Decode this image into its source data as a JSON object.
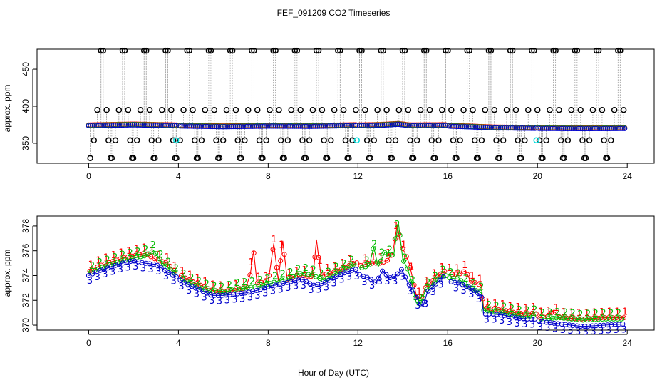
{
  "figure": {
    "title": "FEF_091209  CO2 Timeseries",
    "xlabel": "Hour of Day (UTC)"
  },
  "colors": {
    "series1": "#ff0000",
    "series2": "#00bb00",
    "series3": "#0000cc",
    "reference": "#000000",
    "calibration": "#00dddd",
    "connector": "#999999"
  },
  "chart_data": [
    {
      "type": "scatter",
      "title": "",
      "xlabel": "",
      "ylabel": "approx. ppm",
      "xlim": [
        -2.3,
        25.2
      ],
      "ylim": [
        323,
        477
      ],
      "xticks": [
        0,
        4,
        8,
        12,
        16,
        20,
        24
      ],
      "yticks": [
        350,
        400,
        450
      ],
      "gaps": [
        [
          3.95,
          4.05
        ],
        [
          11.95,
          12.05
        ],
        [
          15.95,
          16.05
        ],
        [
          19.95,
          20.05
        ]
      ],
      "baseline": [
        [
          0,
          374
        ],
        [
          2,
          375.2
        ],
        [
          3.9,
          374
        ],
        [
          4.1,
          373.6
        ],
        [
          6,
          372.7
        ],
        [
          8,
          373.5
        ],
        [
          10,
          373.2
        ],
        [
          11.9,
          374.3
        ],
        [
          12.1,
          374
        ],
        [
          13,
          374.6
        ],
        [
          13.8,
          376
        ],
        [
          14.3,
          374
        ],
        [
          15.9,
          374.3
        ],
        [
          16.1,
          373.4
        ],
        [
          17,
          372.5
        ],
        [
          18,
          371.2
        ],
        [
          19.9,
          370.5
        ],
        [
          20.1,
          370.4
        ],
        [
          22,
          370.1
        ],
        [
          23.9,
          370.3
        ]
      ],
      "reference_cycle_hours": 0.96,
      "reference_offset_hours": 0.07,
      "reference_levels": [
        330,
        354,
        395,
        475,
        475,
        395,
        354,
        330
      ],
      "reference_level_offsets": [
        0,
        0.17,
        0.33,
        0.5,
        0.6,
        0.76,
        0.85,
        0.94
      ],
      "calibration_points": [
        [
          3.9,
          354
        ],
        [
          11.95,
          354
        ],
        [
          19.95,
          354
        ]
      ]
    },
    {
      "type": "line",
      "title": "",
      "xlabel": "",
      "ylabel": "approx. ppm",
      "xlim": [
        -2.3,
        25.2
      ],
      "ylim": [
        369.6,
        378.8
      ],
      "xticks": [
        0,
        4,
        8,
        12,
        16,
        20,
        24
      ],
      "yticks": [
        370,
        372,
        374,
        376,
        378
      ],
      "series": [
        {
          "name": "1",
          "points": [
            [
              0,
              374.3
            ],
            [
              0.5,
              374.8
            ],
            [
              1,
              375.1
            ],
            [
              1.5,
              375.4
            ],
            [
              2,
              375.6
            ],
            [
              2.5,
              375.8
            ],
            [
              3,
              375.3
            ],
            [
              3.5,
              375
            ],
            [
              3.9,
              374.2
            ],
            [
              4.1,
              374
            ],
            [
              4.5,
              373.6
            ],
            [
              5,
              373.2
            ],
            [
              5.5,
              372.8
            ],
            [
              6,
              372.7
            ],
            [
              6.5,
              372.8
            ],
            [
              7,
              373
            ],
            [
              7.2,
              374.1
            ],
            [
              7.35,
              376
            ],
            [
              7.5,
              373.4
            ],
            [
              8,
              373.5
            ],
            [
              8.25,
              376.6
            ],
            [
              8.45,
              373.6
            ],
            [
              8.65,
              376.8
            ],
            [
              8.85,
              373.7
            ],
            [
              9.5,
              374
            ],
            [
              10,
              373.9
            ],
            [
              10.15,
              376.9
            ],
            [
              10.35,
              374
            ],
            [
              11,
              374.3
            ],
            [
              11.5,
              374.7
            ],
            [
              11.9,
              375.1
            ],
            [
              12.1,
              374.8
            ],
            [
              12.5,
              375
            ],
            [
              13,
              375
            ],
            [
              13.3,
              375.2
            ],
            [
              13.55,
              375.8
            ],
            [
              13.75,
              378.1
            ],
            [
              13.9,
              376.5
            ],
            [
              14.1,
              375.8
            ],
            [
              14.3,
              374.9
            ],
            [
              14.6,
              372.4
            ],
            [
              14.8,
              372.1
            ],
            [
              15,
              373
            ],
            [
              15.4,
              373.7
            ],
            [
              15.8,
              374.3
            ],
            [
              15.9,
              374.4
            ],
            [
              16.1,
              374.1
            ],
            [
              16.5,
              374.1
            ],
            [
              16.8,
              374.4
            ],
            [
              17,
              373.6
            ],
            [
              17.5,
              373.2
            ],
            [
              17.6,
              371.4
            ],
            [
              18,
              371.3
            ],
            [
              18.5,
              371.2
            ],
            [
              19,
              371
            ],
            [
              19.5,
              370.9
            ],
            [
              19.9,
              371
            ],
            [
              20.1,
              370.6
            ],
            [
              20.5,
              370.7
            ],
            [
              20.7,
              371.2
            ],
            [
              21,
              370.6
            ],
            [
              22,
              370.5
            ],
            [
              23,
              370.6
            ],
            [
              23.9,
              370.6
            ]
          ]
        },
        {
          "name": "2",
          "points": [
            [
              0,
              374.2
            ],
            [
              0.5,
              374.6
            ],
            [
              1,
              374.9
            ],
            [
              1.5,
              375.2
            ],
            [
              2,
              375.4
            ],
            [
              2.5,
              375.6
            ],
            [
              2.9,
              376
            ],
            [
              3.3,
              375
            ],
            [
              3.9,
              374.1
            ],
            [
              4.1,
              373.8
            ],
            [
              4.5,
              373.4
            ],
            [
              5,
              373
            ],
            [
              5.5,
              372.7
            ],
            [
              6,
              372.6
            ],
            [
              6.5,
              372.9
            ],
            [
              7,
              373
            ],
            [
              7.5,
              373.1
            ],
            [
              8,
              373.3
            ],
            [
              8.5,
              373.6
            ],
            [
              9,
              373.8
            ],
            [
              9.5,
              374.2
            ],
            [
              10,
              374
            ],
            [
              10.5,
              373.6
            ],
            [
              11,
              374.2
            ],
            [
              11.5,
              374.6
            ],
            [
              11.9,
              375
            ],
            [
              12.1,
              374.6
            ],
            [
              12.5,
              374.8
            ],
            [
              12.7,
              376.3
            ],
            [
              12.9,
              374.7
            ],
            [
              13.2,
              375.9
            ],
            [
              13.4,
              375.6
            ],
            [
              13.6,
              375.7
            ],
            [
              13.8,
              378.3
            ],
            [
              14,
              375.3
            ],
            [
              14.2,
              374.6
            ],
            [
              14.4,
              373.4
            ],
            [
              14.6,
              371.8
            ],
            [
              14.8,
              371.7
            ],
            [
              15,
              372.8
            ],
            [
              15.4,
              373.4
            ],
            [
              15.8,
              374
            ],
            [
              15.9,
              374
            ],
            [
              16.1,
              373.8
            ],
            [
              16.5,
              373.7
            ],
            [
              17,
              373
            ],
            [
              17.5,
              372.6
            ],
            [
              17.6,
              371.2
            ],
            [
              18,
              371.1
            ],
            [
              18.5,
              371
            ],
            [
              19,
              370.8
            ],
            [
              19.5,
              370.7
            ],
            [
              19.9,
              370.8
            ],
            [
              20.1,
              370.5
            ],
            [
              21,
              370.6
            ],
            [
              22,
              370.4
            ],
            [
              23,
              370.5
            ],
            [
              23.9,
              370.5
            ]
          ]
        },
        {
          "name": "3",
          "points": [
            [
              0,
              374
            ],
            [
              0.5,
              374.4
            ],
            [
              1,
              374.7
            ],
            [
              1.5,
              375
            ],
            [
              2,
              375.2
            ],
            [
              2.5,
              375
            ],
            [
              3,
              374.9
            ],
            [
              3.5,
              374.3
            ],
            [
              3.9,
              373.9
            ],
            [
              4.1,
              373.6
            ],
            [
              4.5,
              373.2
            ],
            [
              5,
              372.8
            ],
            [
              5.5,
              372.4
            ],
            [
              6,
              372.4
            ],
            [
              6.5,
              372.5
            ],
            [
              7,
              372.6
            ],
            [
              7.5,
              372.8
            ],
            [
              8,
              373.1
            ],
            [
              8.5,
              373.3
            ],
            [
              9,
              373.5
            ],
            [
              9.5,
              373.7
            ],
            [
              10,
              373.2
            ],
            [
              10.5,
              373.4
            ],
            [
              11,
              373.9
            ],
            [
              11.5,
              374.3
            ],
            [
              11.9,
              374.5
            ],
            [
              12.1,
              374
            ],
            [
              12.5,
              373.8
            ],
            [
              12.8,
              373.4
            ],
            [
              13.1,
              374.4
            ],
            [
              13.4,
              373.8
            ],
            [
              13.7,
              374
            ],
            [
              13.95,
              374.5
            ],
            [
              14.2,
              373.5
            ],
            [
              14.5,
              372.7
            ],
            [
              14.7,
              371.9
            ],
            [
              14.9,
              371.5
            ],
            [
              15.1,
              372.7
            ],
            [
              15.4,
              373.2
            ],
            [
              15.8,
              373.9
            ],
            [
              15.9,
              373.8
            ],
            [
              16.1,
              373.5
            ],
            [
              16.5,
              373.4
            ],
            [
              17,
              373
            ],
            [
              17.5,
              372.4
            ],
            [
              17.6,
              370.9
            ],
            [
              18,
              370.9
            ],
            [
              18.5,
              370.8
            ],
            [
              19,
              370.6
            ],
            [
              19.5,
              370.5
            ],
            [
              19.9,
              370.5
            ],
            [
              20.1,
              370.3
            ],
            [
              21,
              370.1
            ],
            [
              22,
              369.9
            ],
            [
              23,
              370
            ],
            [
              23.9,
              370.1
            ]
          ]
        }
      ]
    }
  ]
}
